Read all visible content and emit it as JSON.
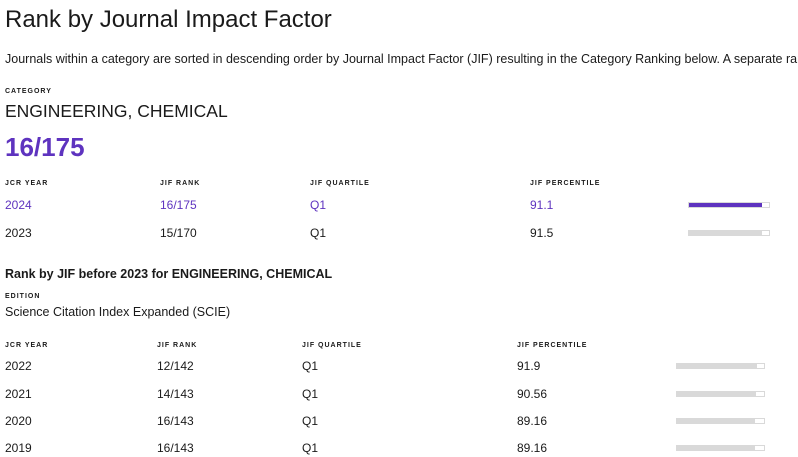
{
  "title": "Rank by Journal Impact Factor",
  "description": "Journals within a category are sorted in descending order by Journal Impact Factor (JIF) resulting in the Category Ranking below. A separate rank",
  "category_label": "CATEGORY",
  "category": "ENGINEERING, CHEMICAL",
  "current_rank": "16/175",
  "headers": [
    "JCR YEAR",
    "JIF RANK",
    "JIF QUARTILE",
    "JIF PERCENTILE"
  ],
  "rows": [
    {
      "year": "2024",
      "rank": "16/175",
      "quartile": "Q1",
      "percentile": "91.1",
      "highlight": true
    },
    {
      "year": "2023",
      "rank": "15/170",
      "quartile": "Q1",
      "percentile": "91.5",
      "highlight": false
    }
  ],
  "before_heading": "Rank by JIF before 2023 for ENGINEERING, CHEMICAL",
  "edition_label": "EDITION",
  "edition": "Science Citation Index Expanded (SCIE)",
  "headers2": [
    "JCR YEAR",
    "JIF RANK",
    "JIF QUARTILE",
    "JIF PERCENTILE"
  ],
  "rows2": [
    {
      "year": "2022",
      "rank": "12/142",
      "quartile": "Q1",
      "percentile": "91.9"
    },
    {
      "year": "2021",
      "rank": "14/143",
      "quartile": "Q1",
      "percentile": "90.56"
    },
    {
      "year": "2020",
      "rank": "16/143",
      "quartile": "Q1",
      "percentile": "89.16"
    },
    {
      "year": "2019",
      "rank": "16/143",
      "quartile": "Q1",
      "percentile": "89.16"
    }
  ],
  "colors": {
    "accent": "#5e33bf",
    "bar_track": "#d9d9d9"
  }
}
